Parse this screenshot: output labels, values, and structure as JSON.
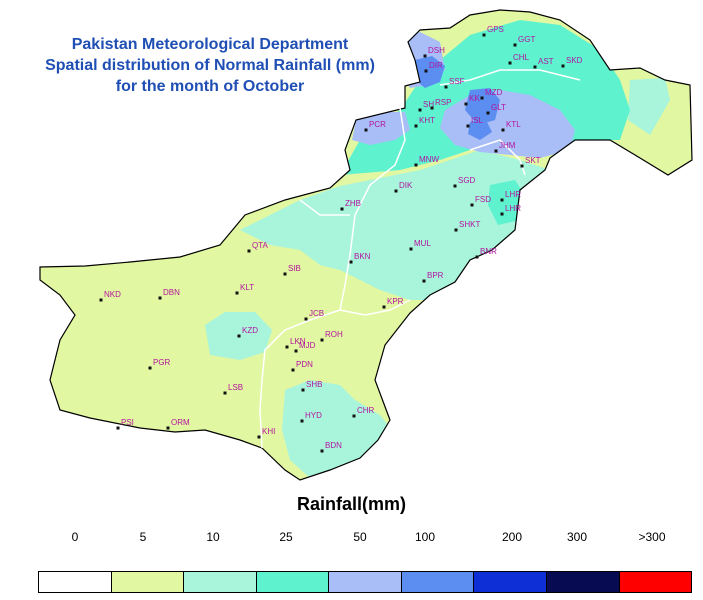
{
  "title": {
    "line1": "Pakistan Meteorological Department",
    "line2": "Spatial distribution of Normal Rainfall (mm)",
    "line3": "for the month of October"
  },
  "colors": {
    "c0": "#ffffff",
    "c5": "#e2f7a1",
    "c10": "#a8f5dc",
    "c25": "#5ef2cf",
    "c50": "#a9bdf7",
    "c100": "#5b8ef0",
    "c200": "#0f2fd6",
    "c300": "#060b52",
    "c300p": "#ff0000",
    "border": "#ffffff",
    "outline": "#000000"
  },
  "stations": [
    {
      "code": "GPS"
    },
    {
      "code": "GGT"
    },
    {
      "code": "DSH"
    },
    {
      "code": "DIR"
    },
    {
      "code": "CHL"
    },
    {
      "code": "AST"
    },
    {
      "code": "SKD"
    },
    {
      "code": "SSF"
    },
    {
      "code": "SH"
    },
    {
      "code": "RSP"
    },
    {
      "code": "MZD"
    },
    {
      "code": "KK"
    },
    {
      "code": "GLT"
    },
    {
      "code": "PCR"
    },
    {
      "code": "KHT"
    },
    {
      "code": "ISL"
    },
    {
      "code": "KTL"
    },
    {
      "code": "JHM"
    },
    {
      "code": "SKT"
    },
    {
      "code": "MNW"
    },
    {
      "code": "SGD"
    },
    {
      "code": "DIK"
    },
    {
      "code": "ZHB"
    },
    {
      "code": "FSD"
    },
    {
      "code": "LHR"
    },
    {
      "code": "LHR"
    },
    {
      "code": "SHKT"
    },
    {
      "code": "QTA"
    },
    {
      "code": "MUL"
    },
    {
      "code": "BNR"
    },
    {
      "code": "BKN"
    },
    {
      "code": "SIB"
    },
    {
      "code": "BPR"
    },
    {
      "code": "NKD"
    },
    {
      "code": "DBN"
    },
    {
      "code": "KLT"
    },
    {
      "code": "KPR"
    },
    {
      "code": "JCB"
    },
    {
      "code": "KZD"
    },
    {
      "code": "ROH"
    },
    {
      "code": "LKN"
    },
    {
      "code": "MJD"
    },
    {
      "code": "PGR"
    },
    {
      "code": "PDN"
    },
    {
      "code": "SHB"
    },
    {
      "code": "LSB"
    },
    {
      "code": "CHR"
    },
    {
      "code": "HYD"
    },
    {
      "code": "PSI"
    },
    {
      "code": "ORM"
    },
    {
      "code": "KHI"
    },
    {
      "code": "BDN"
    }
  ],
  "legend": {
    "title": "Rainfall(mm)",
    "ticks": [
      "0",
      "5",
      "10",
      "25",
      "50",
      "100",
      "200",
      "300",
      ">300"
    ],
    "bins": [
      "c0",
      "c5",
      "c10",
      "c25",
      "c50",
      "c100",
      "c200",
      "c300",
      "c300p"
    ]
  }
}
